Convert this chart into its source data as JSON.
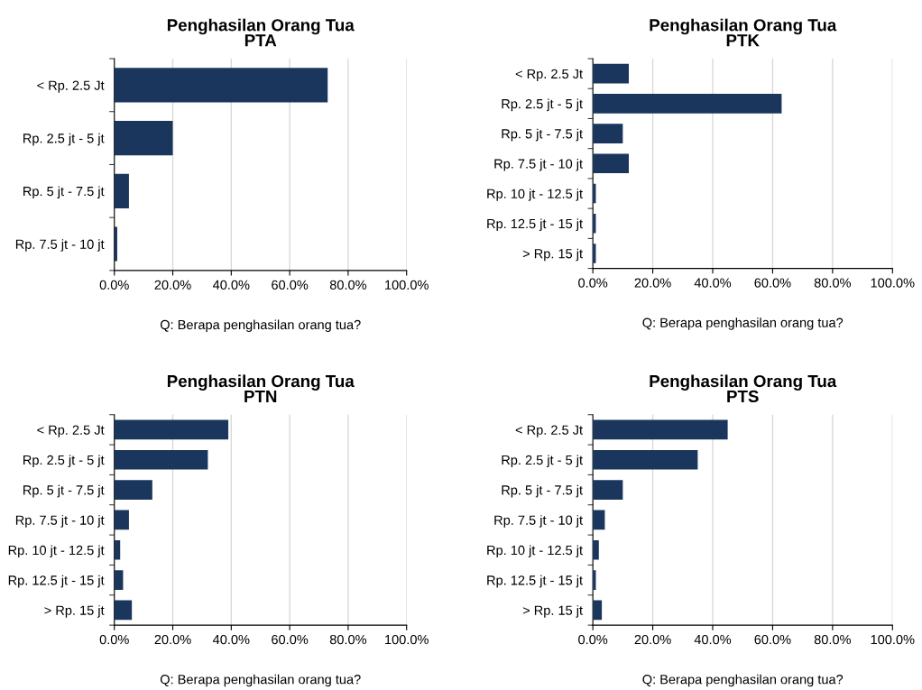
{
  "chart_data": [
    {
      "type": "bar",
      "orientation": "horizontal",
      "title": "Penghasilan Orang Tua\nPTA",
      "xlabel": "Q: Berapa penghasilan orang tua?",
      "categories": [
        "< Rp. 2.5 Jt",
        "Rp. 2.5 jt - 5 jt",
        "Rp. 5 jt - 7.5 jt",
        "Rp. 7.5 jt - 10 jt"
      ],
      "values": [
        73,
        20,
        5,
        1
      ],
      "color": "#1b365d",
      "xlim": [
        0,
        100
      ],
      "xticks": [
        {
          "value": 0,
          "label": "0.0%"
        },
        {
          "value": 20,
          "label": "20.0%"
        },
        {
          "value": 40,
          "label": "40.0%"
        },
        {
          "value": 60,
          "label": "60.0%"
        },
        {
          "value": 80,
          "label": "80.0%"
        },
        {
          "value": 100,
          "label": "100.0%"
        }
      ],
      "grid": "x"
    },
    {
      "type": "bar",
      "orientation": "horizontal",
      "title": "Penghasilan Orang Tua\nPTK",
      "xlabel": "Q: Berapa penghasilan orang tua?",
      "categories": [
        "< Rp. 2.5 Jt",
        "Rp. 2.5 jt - 5 jt",
        "Rp. 5 jt - 7.5 jt",
        "Rp. 7.5 jt - 10 jt",
        "Rp. 10 jt - 12.5 jt",
        "Rp. 12.5 jt - 15 jt",
        "> Rp. 15 jt"
      ],
      "values": [
        12,
        63,
        10,
        12,
        1,
        1,
        1
      ],
      "color": "#1b365d",
      "xlim": [
        0,
        100
      ],
      "xticks": [
        {
          "value": 0,
          "label": "0.0%"
        },
        {
          "value": 20,
          "label": "20.0%"
        },
        {
          "value": 40,
          "label": "40.0%"
        },
        {
          "value": 60,
          "label": "60.0%"
        },
        {
          "value": 80,
          "label": "80.0%"
        },
        {
          "value": 100,
          "label": "100.0%"
        }
      ],
      "grid": "x"
    },
    {
      "type": "bar",
      "orientation": "horizontal",
      "title": "Penghasilan Orang Tua\nPTN",
      "xlabel": "Q: Berapa penghasilan orang tua?",
      "categories": [
        "< Rp. 2.5 Jt",
        "Rp. 2.5 jt - 5 jt",
        "Rp. 5 jt - 7.5 jt",
        "Rp. 7.5 jt - 10 jt",
        "Rp. 10 jt - 12.5 jt",
        "Rp. 12.5 jt - 15 jt",
        "> Rp. 15 jt"
      ],
      "values": [
        39,
        32,
        13,
        5,
        2,
        3,
        6
      ],
      "color": "#1b365d",
      "xlim": [
        0,
        100
      ],
      "xticks": [
        {
          "value": 0,
          "label": "0.0%"
        },
        {
          "value": 20,
          "label": "20.0%"
        },
        {
          "value": 40,
          "label": "40.0%"
        },
        {
          "value": 60,
          "label": "60.0%"
        },
        {
          "value": 80,
          "label": "80.0%"
        },
        {
          "value": 100,
          "label": "100.0%"
        }
      ],
      "grid": "x"
    },
    {
      "type": "bar",
      "orientation": "horizontal",
      "title": "Penghasilan Orang Tua\nPTS",
      "xlabel": "Q: Berapa penghasilan orang tua?",
      "categories": [
        "< Rp. 2.5 Jt",
        "Rp. 2.5 jt - 5 jt",
        "Rp. 5 jt - 7.5 jt",
        "Rp. 7.5 jt - 10 jt",
        "Rp. 10 jt - 12.5 jt",
        "Rp. 12.5 jt - 15 jt",
        "> Rp. 15 jt"
      ],
      "values": [
        45,
        35,
        10,
        4,
        2,
        1,
        3
      ],
      "color": "#1b365d",
      "xlim": [
        0,
        100
      ],
      "xticks": [
        {
          "value": 0,
          "label": "0.0%"
        },
        {
          "value": 20,
          "label": "20.0%"
        },
        {
          "value": 40,
          "label": "40.0%"
        },
        {
          "value": 60,
          "label": "60.0%"
        },
        {
          "value": 80,
          "label": "80.0%"
        },
        {
          "value": 100,
          "label": "100.0%"
        }
      ],
      "grid": "x"
    }
  ]
}
